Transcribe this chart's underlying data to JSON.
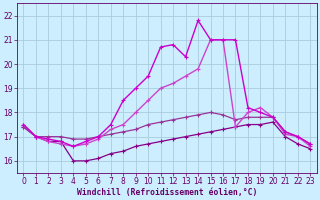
{
  "background_color": "#cceeff",
  "grid_color": "#aaccdd",
  "xlabel": "Windchill (Refroidissement éolien,°C)",
  "xlabel_color": "#660066",
  "tick_color": "#660066",
  "xlim": [
    -0.5,
    23.5
  ],
  "ylim": [
    15.5,
    22.5
  ],
  "yticks": [
    16,
    17,
    18,
    19,
    20,
    21,
    22
  ],
  "xticks": [
    0,
    1,
    2,
    3,
    4,
    5,
    6,
    7,
    8,
    9,
    10,
    11,
    12,
    13,
    14,
    15,
    16,
    17,
    18,
    19,
    20,
    21,
    22,
    23
  ],
  "series1": {
    "x": [
      0,
      1,
      2,
      3,
      4,
      5,
      6,
      7,
      8,
      9,
      10,
      11,
      12,
      13,
      14,
      15,
      16,
      17,
      18,
      19,
      20,
      21,
      22,
      23
    ],
    "y": [
      17.4,
      17.0,
      16.8,
      16.8,
      16.0,
      16.0,
      16.1,
      16.3,
      16.4,
      16.6,
      16.7,
      16.8,
      16.9,
      17.0,
      17.1,
      17.2,
      17.3,
      17.4,
      17.5,
      17.5,
      17.6,
      17.0,
      16.7,
      16.5
    ],
    "color": "#880088",
    "lw": 0.9
  },
  "series2": {
    "x": [
      0,
      1,
      2,
      3,
      4,
      5,
      6,
      7,
      8,
      9,
      10,
      11,
      12,
      13,
      14,
      15,
      16,
      17,
      18,
      19,
      20,
      21,
      22,
      23
    ],
    "y": [
      17.4,
      17.0,
      17.0,
      17.0,
      16.9,
      16.9,
      17.0,
      17.1,
      17.2,
      17.3,
      17.5,
      17.6,
      17.7,
      17.8,
      17.9,
      18.0,
      17.9,
      17.7,
      17.8,
      17.8,
      17.8,
      17.2,
      17.0,
      16.7
    ],
    "color": "#993399",
    "lw": 0.9
  },
  "series3": {
    "x": [
      0,
      1,
      2,
      3,
      4,
      5,
      6,
      7,
      8,
      9,
      10,
      11,
      12,
      13,
      14,
      15,
      16,
      17,
      18,
      19,
      20,
      21,
      22,
      23
    ],
    "y": [
      17.5,
      17.0,
      16.8,
      16.7,
      16.6,
      16.7,
      16.9,
      17.3,
      17.5,
      18.0,
      18.5,
      19.0,
      19.2,
      19.5,
      19.8,
      21.0,
      21.0,
      17.4,
      18.0,
      18.2,
      17.8,
      17.1,
      17.0,
      16.6
    ],
    "color": "#cc44cc",
    "lw": 1.0
  },
  "series4": {
    "x": [
      0,
      1,
      2,
      3,
      4,
      5,
      6,
      7,
      8,
      9,
      10,
      11,
      12,
      13,
      14,
      15,
      16,
      17,
      18,
      19,
      20,
      21,
      22,
      23
    ],
    "y": [
      17.5,
      17.0,
      16.9,
      16.8,
      16.6,
      16.8,
      17.0,
      17.5,
      18.5,
      19.0,
      19.5,
      20.7,
      20.8,
      20.3,
      21.8,
      21.0,
      21.0,
      21.0,
      18.2,
      18.0,
      17.8,
      17.2,
      17.0,
      16.7
    ],
    "color": "#cc00cc",
    "lw": 1.0
  }
}
